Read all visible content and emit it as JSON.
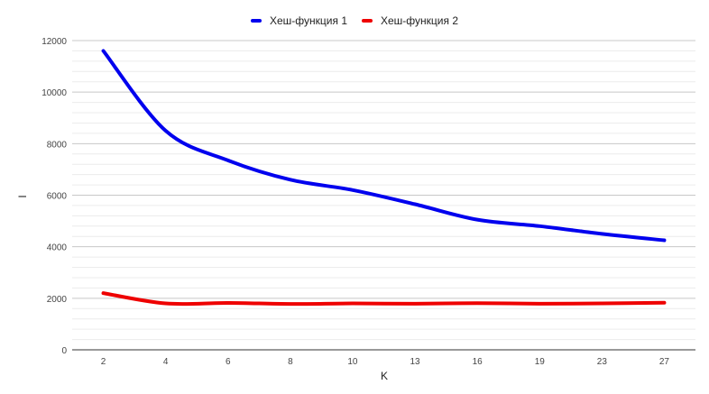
{
  "chart_data": {
    "type": "line",
    "title": "",
    "xlabel": "K",
    "ylabel": "I",
    "categories": [
      "2",
      "4",
      "6",
      "8",
      "10",
      "13",
      "16",
      "19",
      "23",
      "27"
    ],
    "ylim": [
      0,
      12000
    ],
    "yticks": [
      0,
      2000,
      4000,
      6000,
      8000,
      10000,
      12000
    ],
    "minor_gridlines_per_major": 5,
    "grid": true,
    "legend_position": "top",
    "series": [
      {
        "name": "Хеш-функция 1",
        "color": "#0000ee",
        "values": [
          11600,
          8500,
          7350,
          6600,
          6200,
          5650,
          5050,
          4800,
          4500,
          4250
        ]
      },
      {
        "name": "Хеш-функция 2",
        "color": "#ee0000",
        "values": [
          2200,
          1800,
          1820,
          1780,
          1800,
          1790,
          1810,
          1790,
          1800,
          1830
        ]
      }
    ]
  }
}
